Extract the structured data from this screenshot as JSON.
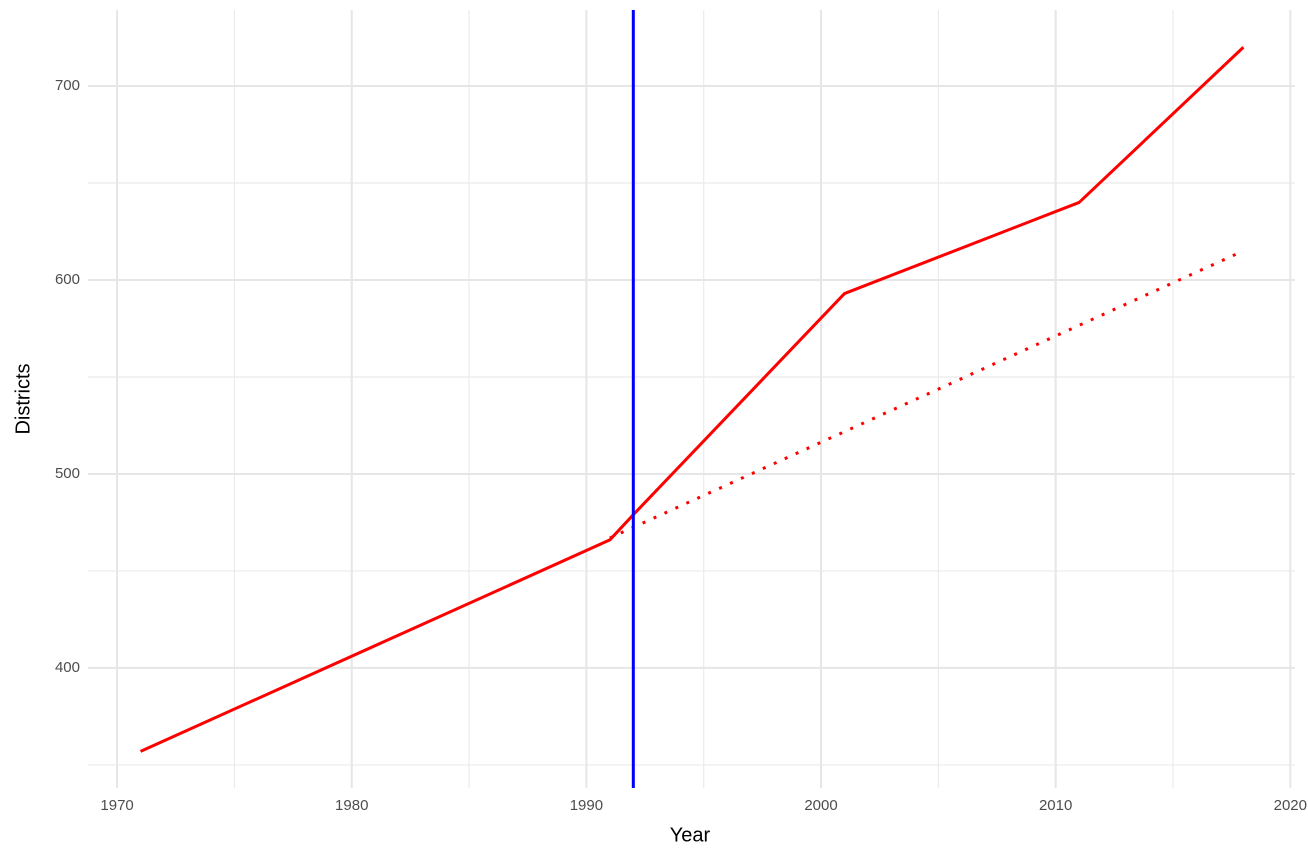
{
  "chart_data": {
    "type": "line",
    "x_label": "Year",
    "y_label": "Districts",
    "xlim": [
      1968.76,
      2020.2
    ],
    "ylim": [
      338.1,
      739.2
    ],
    "xticks": [
      1970,
      1980,
      1990,
      2000,
      2010,
      2020
    ],
    "yticks": [
      400,
      500,
      600,
      700
    ],
    "x_minor_grid": [
      1975,
      1985,
      1995,
      2005,
      2015
    ],
    "y_minor_grid": [
      350,
      450,
      550,
      650
    ],
    "grid": true,
    "vline": {
      "x": 1992,
      "color": "#0000ff"
    },
    "series": [
      {
        "color": "#ff0000",
        "style": "solid",
        "x": [
          1971,
          1991,
          1992,
          2001,
          2011,
          2018
        ],
        "values": [
          357,
          466,
          479,
          593,
          640,
          720
        ]
      },
      {
        "color": "#ff0000",
        "style": "dotted",
        "x": [
          1991,
          2018
        ],
        "values": [
          467,
          615
        ]
      }
    ]
  }
}
